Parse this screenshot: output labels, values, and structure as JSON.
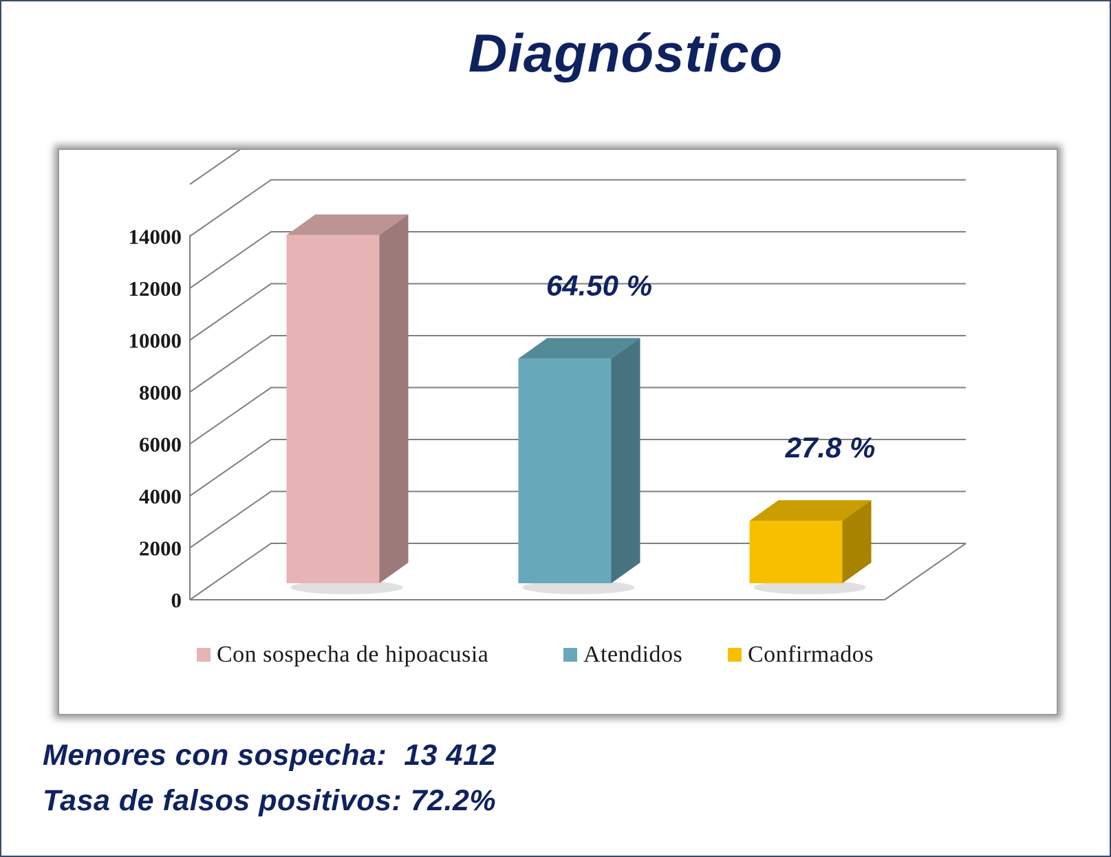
{
  "title": "Diagnóstico",
  "chart_data": {
    "type": "bar",
    "categories": [
      "Con sospecha de hipoacusia",
      "Atendidos",
      "Confirmados"
    ],
    "values": [
      13412,
      8651,
      2405
    ],
    "colors": [
      "#e6b4b4",
      "#67a9bb",
      "#f6c000"
    ],
    "data_labels": [
      "",
      "64.50 %",
      "27.8 %"
    ],
    "ylim": [
      0,
      16000
    ],
    "yticks": [
      0,
      2000,
      4000,
      6000,
      8000,
      10000,
      12000,
      14000
    ],
    "grid": true,
    "legend_position": "bottom",
    "title": "",
    "xlabel": "",
    "ylabel": ""
  },
  "footer": {
    "line1": "Menores con sospecha:  13 412",
    "line2": "Tasa de falsos positivos: 72.2%"
  }
}
